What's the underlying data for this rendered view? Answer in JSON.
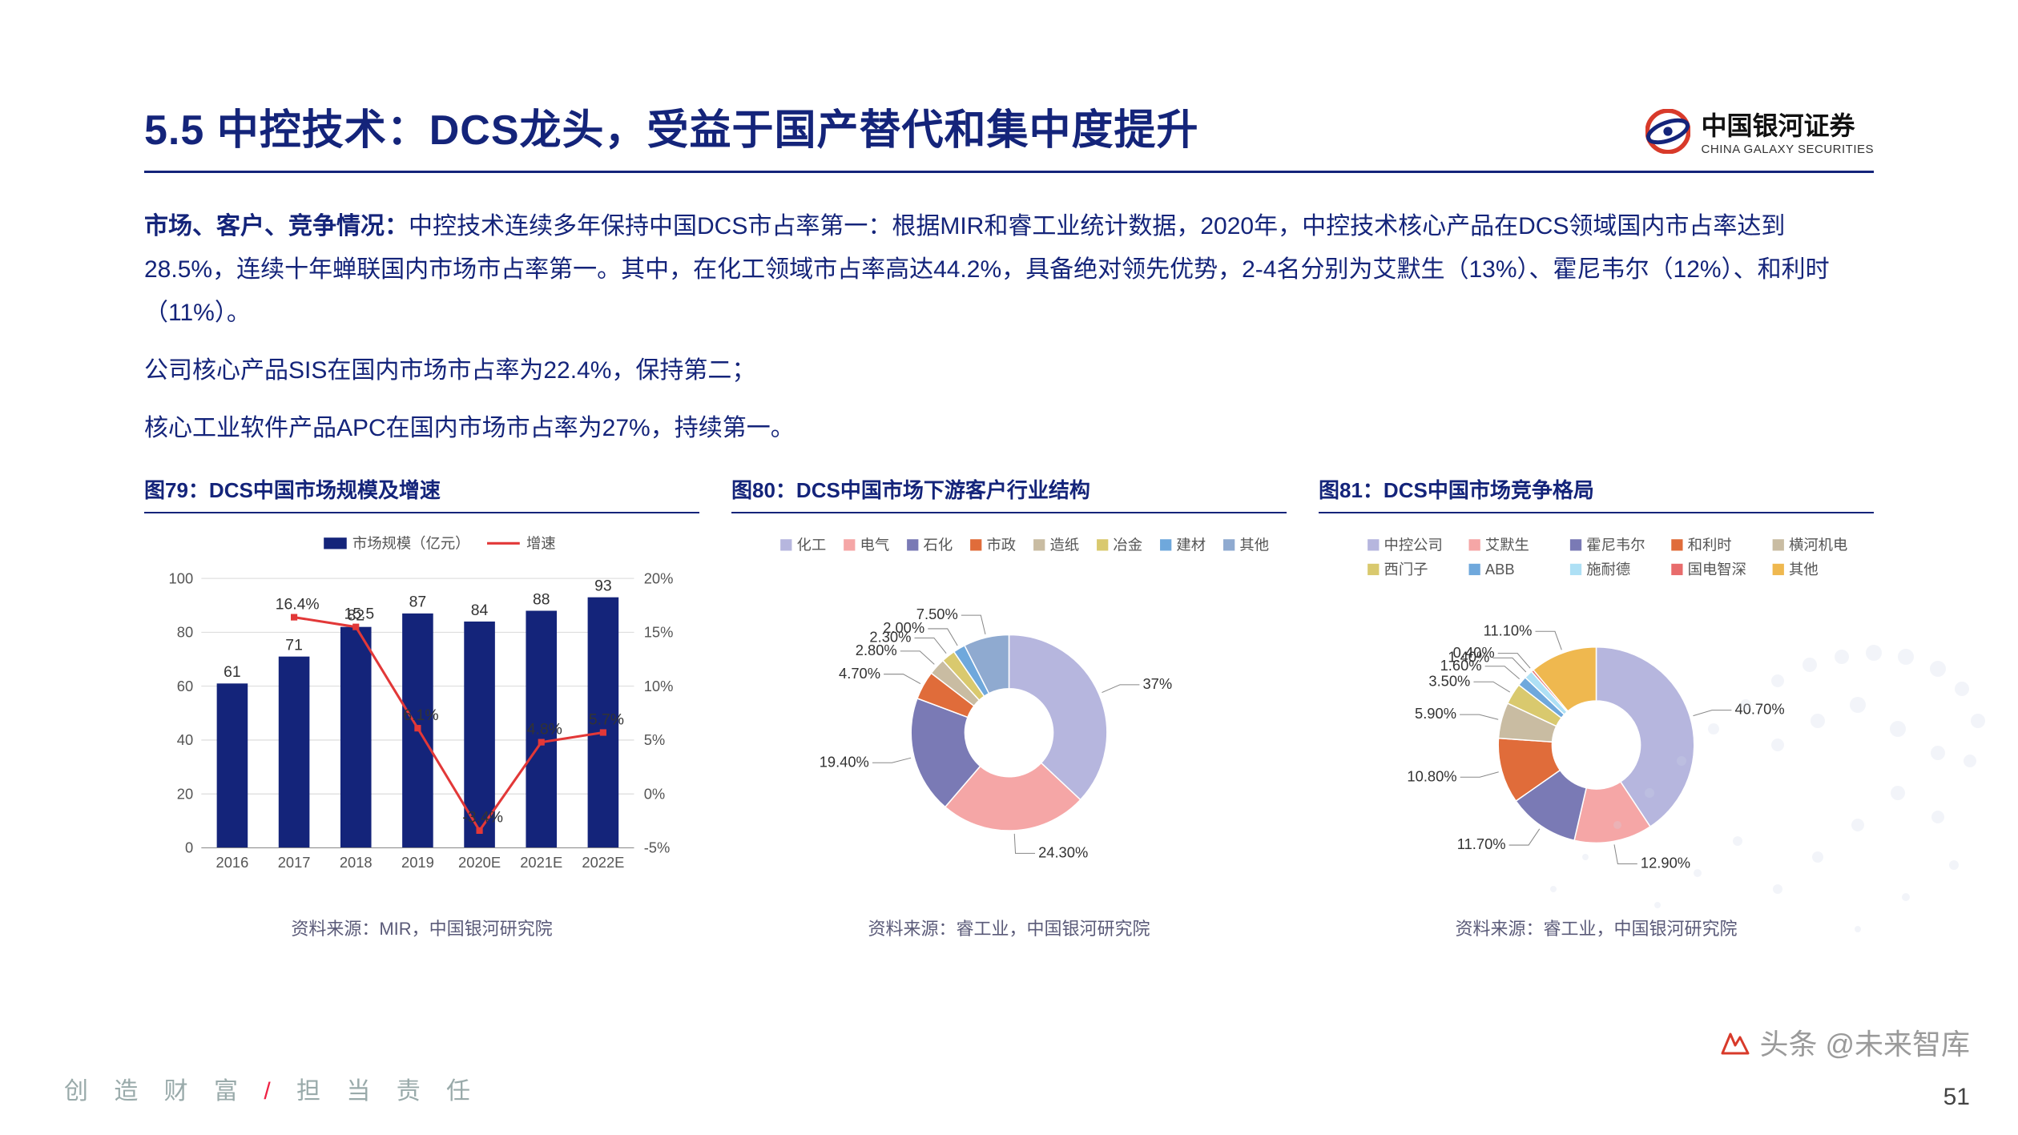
{
  "header": {
    "title": "5.5 中控技术：DCS龙头，受益于国产替代和集中度提升",
    "logo_cn": "中国银河证券",
    "logo_en": "CHINA GALAXY SECURITIES"
  },
  "body": {
    "p1_lead": "市场、客户、竞争情况：",
    "p1": "中控技术连续多年保持中国DCS市占率第一：根据MIR和睿工业统计数据，2020年，中控技术核心产品在DCS领域国内市占率达到28.5%，连续十年蝉联国内市场市占率第一。其中，在化工领域市占率高达44.2%，具备绝对领先优势，2-4名分别为艾默生（13%）、霍尼韦尔（12%）、和利时（11%）。",
    "p2": "公司核心产品SIS在国内市场市占率为22.4%，保持第二；",
    "p3": "核心工业软件产品APC在国内市场市占率为27%，持续第一。"
  },
  "chart79": {
    "title": "图79：DCS中国市场规模及增速",
    "type": "bar+line",
    "legend_bar": "市场规模（亿元）",
    "legend_line": "增速",
    "categories": [
      "2016",
      "2017",
      "2018",
      "2019",
      "2020E",
      "2021E",
      "2022E"
    ],
    "bar_values": [
      61,
      71,
      82,
      87,
      84,
      88,
      93
    ],
    "line_values_pct": [
      null,
      16.4,
      15.5,
      6.1,
      -3.4,
      4.8,
      5.7
    ],
    "line_labels": [
      "",
      "16.4%",
      "15.5",
      "6.1%",
      "-3.4%",
      "4.8%",
      "5.7%"
    ],
    "ylim_left": [
      0,
      100
    ],
    "ytick_left_step": 20,
    "ylim_right": [
      -5,
      20
    ],
    "ytick_right_step": 5,
    "bar_color": "#14247a",
    "line_color": "#e23838",
    "grid_color": "#d9d9d9",
    "axis_text_color": "#555555",
    "bar_width": 0.5,
    "source": "资料来源：MIR，中国银河研究院"
  },
  "chart80": {
    "title": "图80：DCS中国市场下游客户行业结构",
    "type": "donut",
    "categories": [
      "化工",
      "电气",
      "石化",
      "市政",
      "造纸",
      "冶金",
      "建材",
      "其他"
    ],
    "values_pct": [
      37,
      24.3,
      19.4,
      4.7,
      2.8,
      2.3,
      2.0,
      7.5
    ],
    "labels": [
      "37%",
      "24.30%",
      "19.40%",
      "4.70%",
      "2.80%",
      "2.30%",
      "2.00%",
      "7.50%"
    ],
    "colors": [
      "#b6b6de",
      "#f5a6a6",
      "#7a7ab5",
      "#e06c3a",
      "#c9bca2",
      "#d9c96e",
      "#6fa8dc",
      "#8faad0"
    ],
    "inner_radius": 0.45,
    "source": "资料来源：睿工业，中国银河研究院"
  },
  "chart81": {
    "title": "图81：DCS中国市场竞争格局",
    "type": "donut",
    "categories": [
      "中控公司",
      "艾默生",
      "霍尼韦尔",
      "和利时",
      "横河机电",
      "西门子",
      "ABB",
      "施耐德",
      "国电智深",
      "其他"
    ],
    "values_pct": [
      40.7,
      12.9,
      11.7,
      10.8,
      5.9,
      3.5,
      1.6,
      1.4,
      0.4,
      11.1
    ],
    "labels": [
      "40.70%",
      "12.90%",
      "11.70%",
      "10.80%",
      "5.90%",
      "3.50%",
      "1.60%",
      "1.40%",
      "0.40%",
      "11.10%"
    ],
    "colors": [
      "#b6b6de",
      "#f5a6a6",
      "#7a7ab5",
      "#e06c3a",
      "#c9bca2",
      "#d9c96e",
      "#6fa8dc",
      "#aee0f5",
      "#e86c6c",
      "#efb84f"
    ],
    "inner_radius": 0.45,
    "source": "资料来源：睿工业，中国银河研究院"
  },
  "footer": {
    "motto_a": "创 造 财 富",
    "motto_sep": " / ",
    "motto_b": "担 当 责 任",
    "page": "51",
    "watermark": "头条 @未来智库"
  },
  "colors": {
    "brand": "#14247a",
    "logo_red": "#d83a2a"
  }
}
